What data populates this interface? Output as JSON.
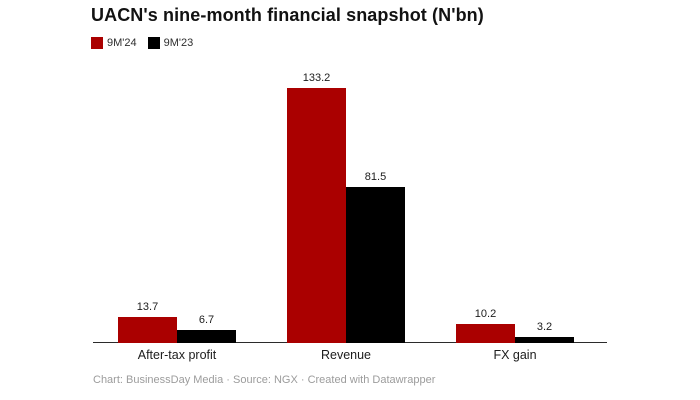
{
  "title": "UACN's nine-month financial snapshot (N'bn)",
  "footer": "Chart: BusinessDay Media · Source: NGX · Created with Datawrapper",
  "chart_data": {
    "type": "bar",
    "grouped": true,
    "title": "UACN's nine-month financial snapshot (N'bn)",
    "categories": [
      "After-tax profit",
      "Revenue",
      "FX gain"
    ],
    "series": [
      {
        "name": "9M'24",
        "color": "#aa0000",
        "values": [
          13.7,
          133.2,
          10.2
        ]
      },
      {
        "name": "9M'23",
        "color": "#000000",
        "values": [
          6.7,
          81.5,
          3.2
        ]
      }
    ],
    "ylim": [
      0,
      133.2
    ],
    "value_labels": true,
    "legend_position": "top-left",
    "grid": false,
    "axis_color": "#2b2b2b",
    "background": "#ffffff"
  }
}
